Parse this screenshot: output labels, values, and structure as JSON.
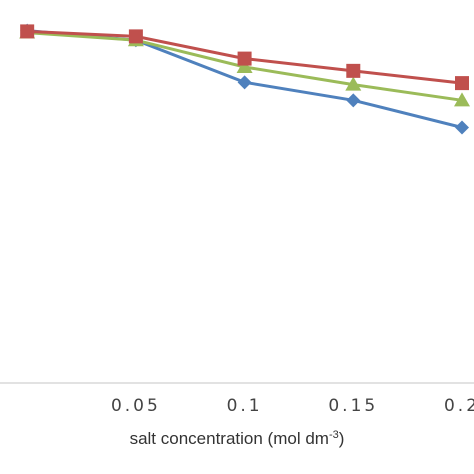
{
  "chart_data": {
    "type": "line",
    "title": "",
    "xlabel": "salt concentration (mol dm",
    "xlabel_sup": "-3",
    "xlabel_end": ")",
    "ylabel": "",
    "x": [
      0,
      0.05,
      0.1,
      0.15,
      0.2
    ],
    "x_tick_labels": [
      "0.05",
      "0.1",
      "0.15",
      "0.2"
    ],
    "x_ticks": [
      0.05,
      0.1,
      0.15,
      0.2
    ],
    "xlim": [
      -0.0125,
      0.2
    ],
    "ylim": [
      0,
      1
    ],
    "grid": false,
    "legend": "none",
    "series": [
      {
        "marker": "diamond",
        "color": "#4f81bd",
        "values": [
          0.92,
          0.895,
          0.785,
          0.738,
          0.667
        ]
      },
      {
        "marker": "square",
        "color": "#c0504d",
        "values": [
          0.918,
          0.905,
          0.847,
          0.815,
          0.783
        ]
      },
      {
        "marker": "triangle",
        "color": "#9bbb59",
        "values": [
          0.915,
          0.895,
          0.825,
          0.779,
          0.738
        ]
      }
    ]
  }
}
